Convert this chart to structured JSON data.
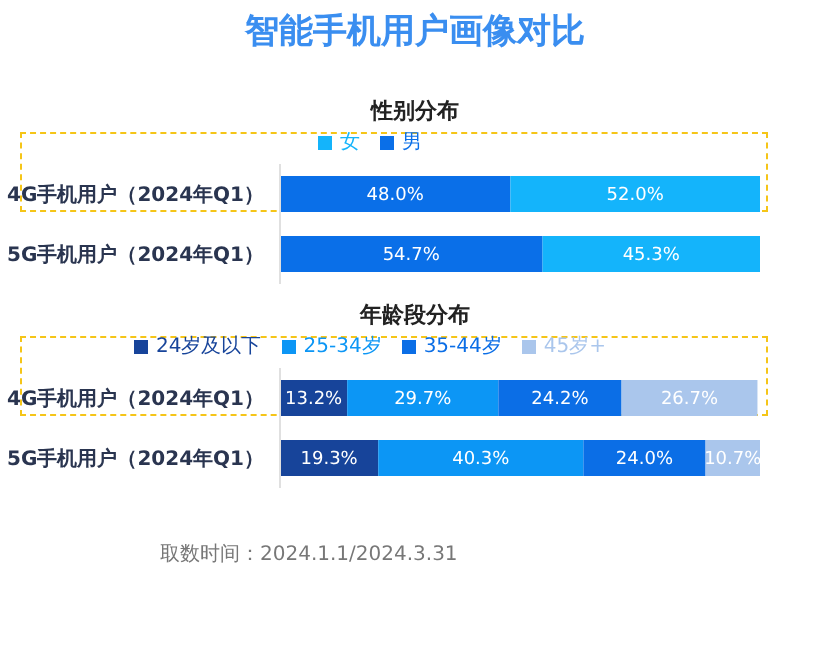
{
  "chart_data": [
    {
      "type": "bar",
      "title": "智能手机用户画像对比",
      "subtitle": "性别分布",
      "orientation": "horizontal",
      "stacked": true,
      "categories": [
        "4G手机用户（2024年Q1）",
        "5G手机用户（2024年Q1）"
      ],
      "legend": "top",
      "series": [
        {
          "name": "男",
          "color": "#0a6fe8",
          "values": [
            48.0,
            54.7
          ],
          "value_labels": [
            "48.0%",
            "54.7%"
          ]
        },
        {
          "name": "女",
          "color": "#14b4fb",
          "values": [
            52.0,
            45.3
          ],
          "value_labels": [
            "52.0%",
            "45.3%"
          ]
        }
      ]
    },
    {
      "type": "bar",
      "title": "年龄段分布",
      "orientation": "horizontal",
      "stacked": true,
      "categories": [
        "4G手机用户（2024年Q1）",
        "5G手机用户（2024年Q1）"
      ],
      "legend": "top",
      "series": [
        {
          "name": "24岁及以下",
          "color": "#17449a",
          "values": [
            13.2,
            19.3
          ],
          "value_labels": [
            "13.2%",
            "19.3%"
          ]
        },
        {
          "name": "25-34岁",
          "color": "#0c96f5",
          "values": [
            29.7,
            40.3
          ],
          "value_labels": [
            "29.7%",
            "40.3%"
          ]
        },
        {
          "name": "35-44岁",
          "color": "#0b6ee6",
          "values": [
            24.2,
            24.0
          ],
          "value_labels": [
            "24.2%",
            "24.0%"
          ]
        },
        {
          "name": "45岁+",
          "color": "#aac6ec",
          "values": [
            26.7,
            10.7
          ],
          "value_labels": [
            "26.7%",
            "10.7%"
          ]
        }
      ],
      "annotations": [
        "取数时间：2024.1.1/2024.3.31"
      ]
    }
  ]
}
